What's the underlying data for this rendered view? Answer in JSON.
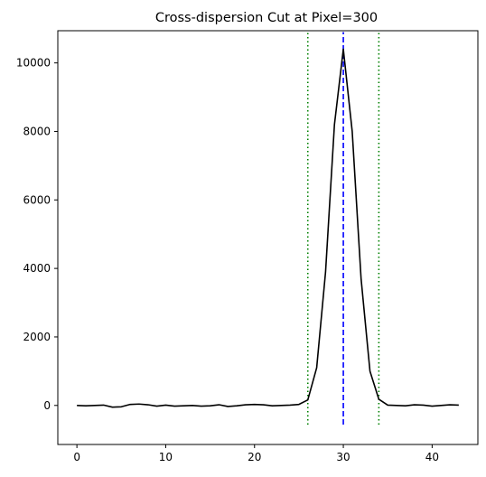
{
  "chart_data": {
    "type": "line",
    "title": "Cross-dispersion Cut at Pixel=300",
    "xlabel": "",
    "ylabel": "",
    "xlim": [
      -2.15,
      45.15
    ],
    "ylim": [
      -1140,
      10940
    ],
    "x_ticks": [
      0,
      10,
      20,
      30,
      40
    ],
    "y_ticks": [
      0,
      2000,
      4000,
      6000,
      8000,
      10000
    ],
    "grid": false,
    "legend": "none",
    "series": [
      {
        "color": "#000000",
        "style": "solid",
        "x": [
          0,
          1,
          2,
          3,
          4,
          5,
          6,
          7,
          8,
          9,
          10,
          11,
          12,
          13,
          14,
          15,
          16,
          17,
          18,
          19,
          20,
          21,
          22,
          23,
          24,
          25,
          26,
          27,
          28,
          29,
          30,
          31,
          32,
          33,
          34,
          35,
          36,
          37,
          38,
          39,
          40,
          41,
          42,
          43
        ],
        "y": [
          0,
          -10,
          0,
          10,
          -50,
          -40,
          30,
          40,
          20,
          -20,
          10,
          -20,
          -10,
          0,
          -20,
          -10,
          20,
          -30,
          -10,
          20,
          30,
          20,
          -10,
          0,
          10,
          30,
          160,
          1100,
          3900,
          8200,
          10400,
          8000,
          3700,
          1000,
          180,
          10,
          0,
          -10,
          20,
          10,
          -20,
          0,
          20,
          10
        ]
      }
    ],
    "vlines": [
      {
        "x": 26,
        "color": "#008000",
        "style": "dotted",
        "ymin": -560,
        "ymax": 10900
      },
      {
        "x": 30,
        "color": "#0000ff",
        "style": "dashed",
        "ymin": -560,
        "ymax": 10900
      },
      {
        "x": 34,
        "color": "#008000",
        "style": "dotted",
        "ymin": -560,
        "ymax": 10900
      }
    ]
  }
}
